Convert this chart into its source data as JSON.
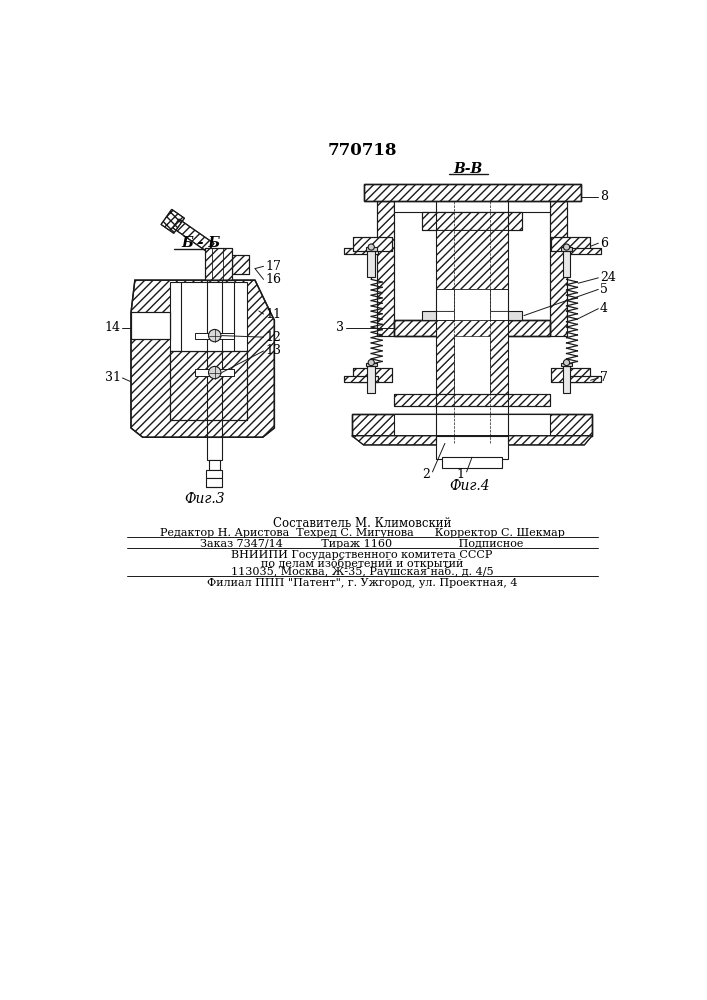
{
  "patent_number": "770718",
  "bg_color": "#ffffff",
  "lc": "#1a1a1a",
  "fig3_label": "Фиг.3",
  "fig4_label": "Фиг.4",
  "section_bb": "Б - Б",
  "section_vv": "В-В",
  "footer_lines": [
    "Составитель М. Климовский",
    "Редактор Н. Аристова  Техред С. Мигунова      Корректор С. Шекмар",
    "Заказ 7347/14           Тираж 1160                   Подписное",
    "ВНИИПИ Государственного комитета СССР",
    "по делам изобретений и открытий",
    "113035, Москва, Ж-35, Раушская наб., д. 4/5",
    "Филиал ППП \"Патент\", г. Ужгород, ул. Проектная, 4"
  ]
}
